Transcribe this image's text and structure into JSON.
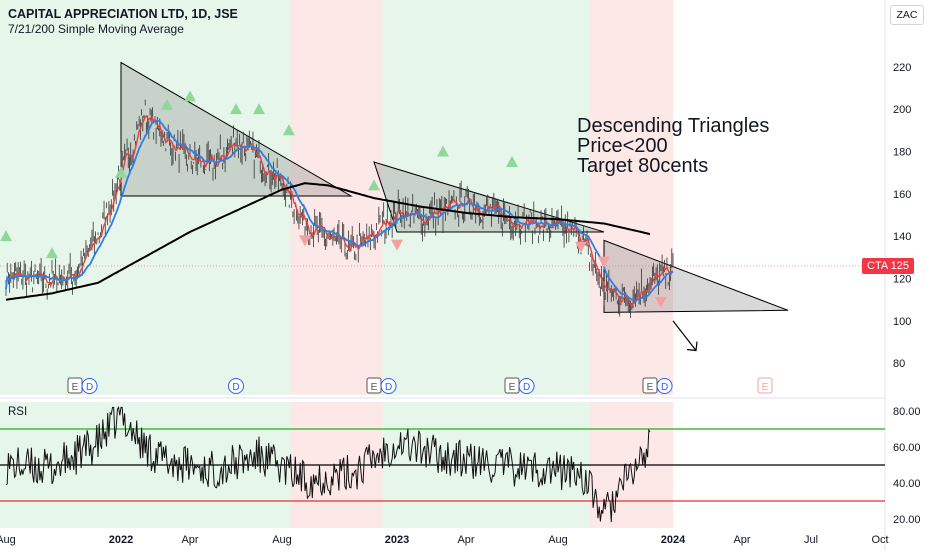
{
  "header": {
    "title": "CAPITAL APPRECIATION LTD, 1D, JSE",
    "subtitle": "7/21/200 Simple Moving Average"
  },
  "currency": "ZAC",
  "annotation": {
    "lines": [
      "Descending Triangles",
      "Price<200",
      "Target 80cents"
    ]
  },
  "price_tag": {
    "symbol": "CTA",
    "price": "125"
  },
  "rsi_label": "RSI",
  "colors": {
    "up_bg": "#e7f6ea",
    "down_bg": "#fde8e8",
    "sma_fast": "#e04343",
    "sma_mid": "#2f7fe0",
    "sma_slow": "#000000",
    "triangle_fill": "rgba(120,120,120,0.28)",
    "buy_marker": "#8ed89a",
    "sell_marker": "#f5a0a0",
    "rsi_upper": "#22aa22",
    "rsi_lower": "#e03030",
    "price_tag": "#f23645"
  },
  "chart_data": [
    {
      "type": "line",
      "panel": "price",
      "x_ticks": [
        "Aug",
        "2022",
        "Apr",
        "Aug",
        "2023",
        "Apr",
        "Aug",
        "2024",
        "Apr",
        "Jul",
        "Oct"
      ],
      "x_range": [
        "2021-08",
        "2024-10"
      ],
      "y_ticks": [
        80,
        100,
        120,
        140,
        160,
        180,
        200,
        220
      ],
      "ylim": [
        65,
        235
      ],
      "series": [
        {
          "id": "price",
          "points": [
            [
              "2021-08",
              121
            ],
            [
              "2021-09",
              120
            ],
            [
              "2021-10",
              119
            ],
            [
              "2021-11",
              122
            ],
            [
              "2021-12",
              140
            ],
            [
              "2022-01",
              170
            ],
            [
              "2022-02",
              198
            ],
            [
              "2022-03",
              185
            ],
            [
              "2022-04",
              176
            ],
            [
              "2022-05",
              173
            ],
            [
              "2022-06",
              185
            ],
            [
              "2022-07",
              176
            ],
            [
              "2022-08",
              165
            ],
            [
              "2022-09",
              146
            ],
            [
              "2022-10",
              139
            ],
            [
              "2022-11",
              133
            ],
            [
              "2022-12",
              141
            ],
            [
              "2023-01",
              152
            ],
            [
              "2023-02",
              148
            ],
            [
              "2023-03",
              152
            ],
            [
              "2023-04",
              156
            ],
            [
              "2023-05",
              152
            ],
            [
              "2023-06",
              148
            ],
            [
              "2023-07",
              146
            ],
            [
              "2023-08",
              144
            ],
            [
              "2023-09",
              140
            ],
            [
              "2023-10",
              115
            ],
            [
              "2023-11",
              110
            ],
            [
              "2023-12",
              118
            ],
            [
              "2023-12-31",
              125
            ]
          ]
        },
        {
          "id": "sma_200",
          "points": [
            [
              "2021-08",
              110
            ],
            [
              "2021-10",
              113
            ],
            [
              "2021-12",
              118
            ],
            [
              "2022-02",
              130
            ],
            [
              "2022-04",
              142
            ],
            [
              "2022-06",
              152
            ],
            [
              "2022-08",
              162
            ],
            [
              "2022-09",
              165
            ],
            [
              "2022-10",
              164
            ],
            [
              "2022-12",
              158
            ],
            [
              "2023-02",
              154
            ],
            [
              "2023-04",
              151
            ],
            [
              "2023-06",
              149
            ],
            [
              "2023-08",
              148
            ],
            [
              "2023-10",
              146
            ],
            [
              "2023-12",
              141
            ]
          ]
        }
      ],
      "triangles": [
        {
          "apex": [
            "2022-01",
            222
          ],
          "base": [
            [
              "2022-01",
              159
            ],
            [
              "2022-11",
              159
            ]
          ]
        },
        {
          "apex": [
            "2022-12",
            175
          ],
          "base": [
            [
              "2023-01",
              142
            ],
            [
              "2023-10",
              142
            ]
          ]
        },
        {
          "apex": [
            "2023-10",
            138
          ],
          "base": [
            [
              "2023-10",
              104
            ],
            [
              "2024-06",
              105
            ]
          ]
        }
      ],
      "target_arrow": {
        "from": [
          "2024-01",
          100
        ],
        "to": [
          "2024-02",
          86
        ]
      }
    },
    {
      "type": "line",
      "panel": "rsi",
      "title": "RSI",
      "y_ticks": [
        "20.00",
        "40.00",
        "60.00",
        "80.00"
      ],
      "ylim": [
        15,
        85
      ],
      "levels": [
        30,
        50,
        70
      ],
      "series": [
        {
          "id": "rsi",
          "points": [
            [
              "2021-08",
              50
            ],
            [
              "2021-10",
              48
            ],
            [
              "2021-12",
              62
            ],
            [
              "2022-01",
              78
            ],
            [
              "2022-02",
              60
            ],
            [
              "2022-03",
              52
            ],
            [
              "2022-05",
              47
            ],
            [
              "2022-07",
              55
            ],
            [
              "2022-09",
              42
            ],
            [
              "2022-11",
              45
            ],
            [
              "2022-12",
              54
            ],
            [
              "2023-01",
              63
            ],
            [
              "2023-03",
              55
            ],
            [
              "2023-05",
              50
            ],
            [
              "2023-07",
              48
            ],
            [
              "2023-09",
              46
            ],
            [
              "2023-10",
              22
            ],
            [
              "2023-11",
              42
            ],
            [
              "2023-12",
              60
            ]
          ]
        }
      ]
    }
  ]
}
